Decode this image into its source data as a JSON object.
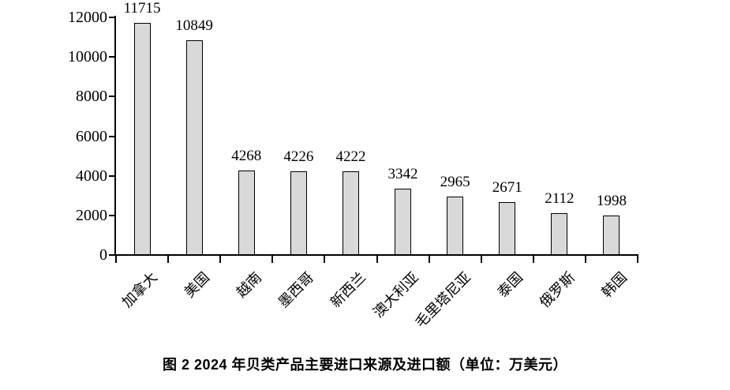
{
  "chart_data": {
    "type": "bar",
    "title": "图 2  2024 年贝类产品主要进口来源及进口额（单位：万美元）",
    "categories": [
      "加拿大",
      "美国",
      "越南",
      "墨西哥",
      "新西兰",
      "澳大利亚",
      "毛里塔尼亚",
      "泰国",
      "俄罗斯",
      "韩国"
    ],
    "values": [
      11715,
      10849,
      4268,
      4226,
      4222,
      3342,
      2965,
      2671,
      2112,
      1998
    ],
    "value_labels": [
      "11715",
      "10849",
      "4268",
      "4226",
      "4222",
      "3342",
      "2965",
      "2671",
      "2112",
      "1998"
    ],
    "xlabel": "",
    "ylabel": "",
    "ylim": [
      0,
      12000
    ],
    "yticks": [
      0,
      2000,
      4000,
      6000,
      8000,
      10000,
      12000
    ],
    "ytick_labels": [
      "0",
      "2000",
      "4000",
      "6000",
      "8000",
      "10000",
      "12000"
    ],
    "grid": false,
    "legend_position": "none",
    "value_labels_shown": true,
    "category_label_rotation_deg": 45,
    "bar_fill_color": "#d9d9d9",
    "bar_border_color": "#000000",
    "axis_color": "#000000",
    "text_color": "#000000",
    "background_color": "#ffffff"
  }
}
